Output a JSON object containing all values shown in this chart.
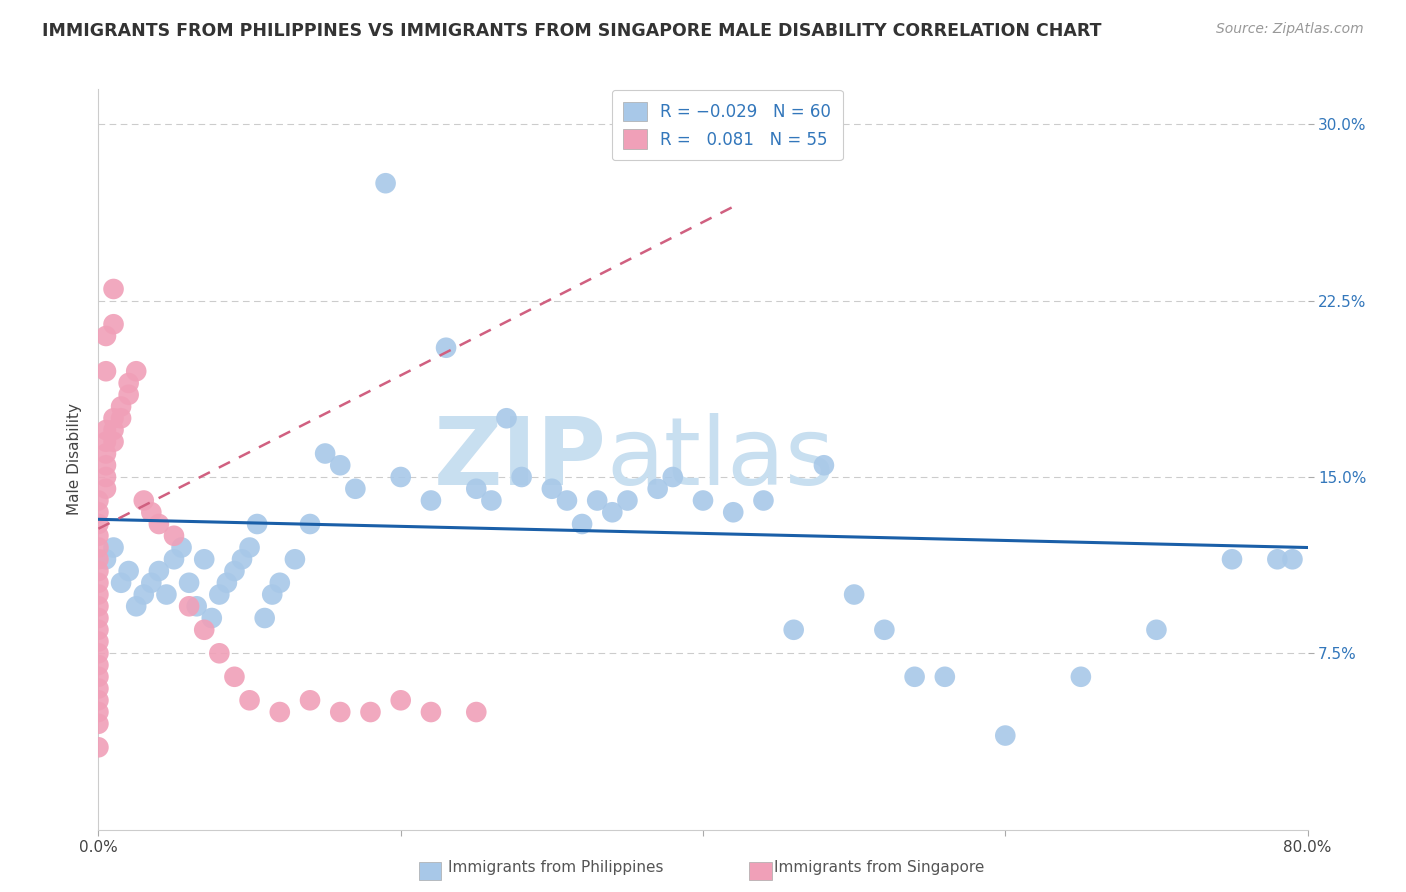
{
  "title": "IMMIGRANTS FROM PHILIPPINES VS IMMIGRANTS FROM SINGAPORE MALE DISABILITY CORRELATION CHART",
  "source": "Source: ZipAtlas.com",
  "ylabel": "Male Disability",
  "xlim": [
    0.0,
    0.8
  ],
  "ylim": [
    0.0,
    0.315
  ],
  "color_blue": "#a8c8e8",
  "color_pink": "#f0a0b8",
  "trendline_blue_color": "#1a5fa8",
  "trendline_pink_color": "#d06080",
  "watermark_color": "#c8dff0",
  "philippines_x": [
    0.005,
    0.01,
    0.015,
    0.02,
    0.025,
    0.03,
    0.035,
    0.04,
    0.045,
    0.05,
    0.055,
    0.06,
    0.065,
    0.07,
    0.075,
    0.08,
    0.085,
    0.09,
    0.095,
    0.1,
    0.105,
    0.11,
    0.115,
    0.12,
    0.13,
    0.14,
    0.15,
    0.16,
    0.17,
    0.19,
    0.2,
    0.22,
    0.23,
    0.25,
    0.26,
    0.27,
    0.28,
    0.3,
    0.31,
    0.32,
    0.33,
    0.34,
    0.35,
    0.37,
    0.38,
    0.4,
    0.42,
    0.44,
    0.46,
    0.48,
    0.5,
    0.52,
    0.54,
    0.56,
    0.6,
    0.65,
    0.7,
    0.75,
    0.78,
    0.79
  ],
  "philippines_y": [
    0.115,
    0.12,
    0.105,
    0.11,
    0.095,
    0.1,
    0.105,
    0.11,
    0.1,
    0.115,
    0.12,
    0.105,
    0.095,
    0.115,
    0.09,
    0.1,
    0.105,
    0.11,
    0.115,
    0.12,
    0.13,
    0.09,
    0.1,
    0.105,
    0.115,
    0.13,
    0.16,
    0.155,
    0.145,
    0.275,
    0.15,
    0.14,
    0.205,
    0.145,
    0.14,
    0.175,
    0.15,
    0.145,
    0.14,
    0.13,
    0.14,
    0.135,
    0.14,
    0.145,
    0.15,
    0.14,
    0.135,
    0.14,
    0.085,
    0.155,
    0.1,
    0.085,
    0.065,
    0.065,
    0.04,
    0.065,
    0.085,
    0.115,
    0.115,
    0.115
  ],
  "singapore_x": [
    0.0,
    0.0,
    0.0,
    0.0,
    0.0,
    0.0,
    0.0,
    0.0,
    0.0,
    0.0,
    0.0,
    0.0,
    0.0,
    0.0,
    0.0,
    0.0,
    0.0,
    0.0,
    0.0,
    0.0,
    0.005,
    0.005,
    0.005,
    0.005,
    0.005,
    0.005,
    0.01,
    0.01,
    0.01,
    0.015,
    0.015,
    0.02,
    0.02,
    0.025,
    0.03,
    0.035,
    0.04,
    0.05,
    0.06,
    0.07,
    0.08,
    0.09,
    0.1,
    0.12,
    0.14,
    0.16,
    0.18,
    0.2,
    0.22,
    0.25,
    0.01,
    0.01,
    0.005,
    0.005,
    0.0
  ],
  "singapore_y": [
    0.14,
    0.135,
    0.13,
    0.125,
    0.12,
    0.115,
    0.11,
    0.105,
    0.1,
    0.095,
    0.09,
    0.085,
    0.08,
    0.075,
    0.07,
    0.065,
    0.06,
    0.055,
    0.05,
    0.045,
    0.17,
    0.165,
    0.16,
    0.155,
    0.15,
    0.145,
    0.175,
    0.17,
    0.165,
    0.18,
    0.175,
    0.19,
    0.185,
    0.195,
    0.14,
    0.135,
    0.13,
    0.125,
    0.095,
    0.085,
    0.075,
    0.065,
    0.055,
    0.05,
    0.055,
    0.05,
    0.05,
    0.055,
    0.05,
    0.05,
    0.23,
    0.215,
    0.21,
    0.195,
    0.035
  ],
  "phil_trend_x": [
    0.0,
    0.8
  ],
  "phil_trend_y": [
    0.132,
    0.12
  ],
  "sing_trend_x": [
    0.0,
    0.42
  ],
  "sing_trend_y": [
    0.128,
    0.265
  ]
}
